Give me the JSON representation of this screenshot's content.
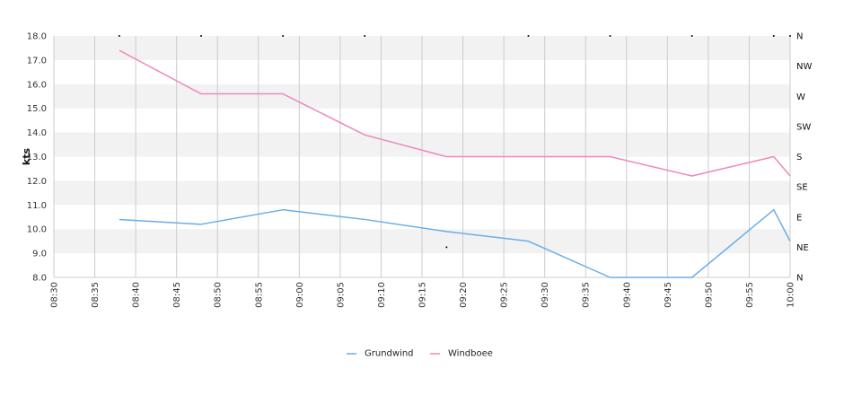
{
  "chart_data": {
    "type": "line",
    "title": "",
    "xlabel": "",
    "ylabel": "kts",
    "ylim": [
      8.0,
      18.0
    ],
    "xlim": [
      "08:30",
      "10:00"
    ],
    "grid": true,
    "legend_placement": "bottom-center",
    "x_ticks": [
      "08:30",
      "08:35",
      "08:40",
      "08:45",
      "08:50",
      "08:55",
      "09:00",
      "09:05",
      "09:10",
      "09:15",
      "09:20",
      "09:25",
      "09:30",
      "09:35",
      "09:40",
      "09:45",
      "09:50",
      "09:55",
      "10:00"
    ],
    "y_ticks": [
      "8.0",
      "9.0",
      "10.0",
      "11.0",
      "12.0",
      "13.0",
      "14.0",
      "15.0",
      "16.0",
      "17.0",
      "18.0"
    ],
    "right_axis_labels": [
      "N",
      "NE",
      "E",
      "SE",
      "S",
      "SW",
      "W",
      "NW",
      "N"
    ],
    "series": [
      {
        "name": "Grundwind",
        "color": "#6aaee8",
        "x": [
          "08:38",
          "08:48",
          "08:58",
          "09:08",
          "09:18",
          "09:28",
          "09:38",
          "09:48",
          "09:58",
          "10:00"
        ],
        "values": [
          10.4,
          10.2,
          10.8,
          10.4,
          9.9,
          9.5,
          8.0,
          8.0,
          10.8,
          9.5
        ]
      },
      {
        "name": "Windboee",
        "color": "#ee88bb",
        "x": [
          "08:38",
          "08:48",
          "08:58",
          "09:08",
          "09:18",
          "09:28",
          "09:38",
          "09:48",
          "09:58",
          "10:00"
        ],
        "values": [
          17.4,
          15.6,
          15.6,
          13.9,
          13.0,
          13.0,
          13.0,
          12.2,
          13.0,
          12.2
        ]
      }
    ],
    "direction_series": {
      "color": "#000000",
      "x": [
        "08:38",
        "08:48",
        "08:58",
        "09:08",
        "09:18",
        "09:28",
        "09:38",
        "09:48",
        "09:58",
        "10:00"
      ],
      "values": [
        "N",
        "N",
        "N",
        "N",
        "NE",
        "N",
        "N",
        "N",
        "N",
        "N"
      ]
    }
  }
}
